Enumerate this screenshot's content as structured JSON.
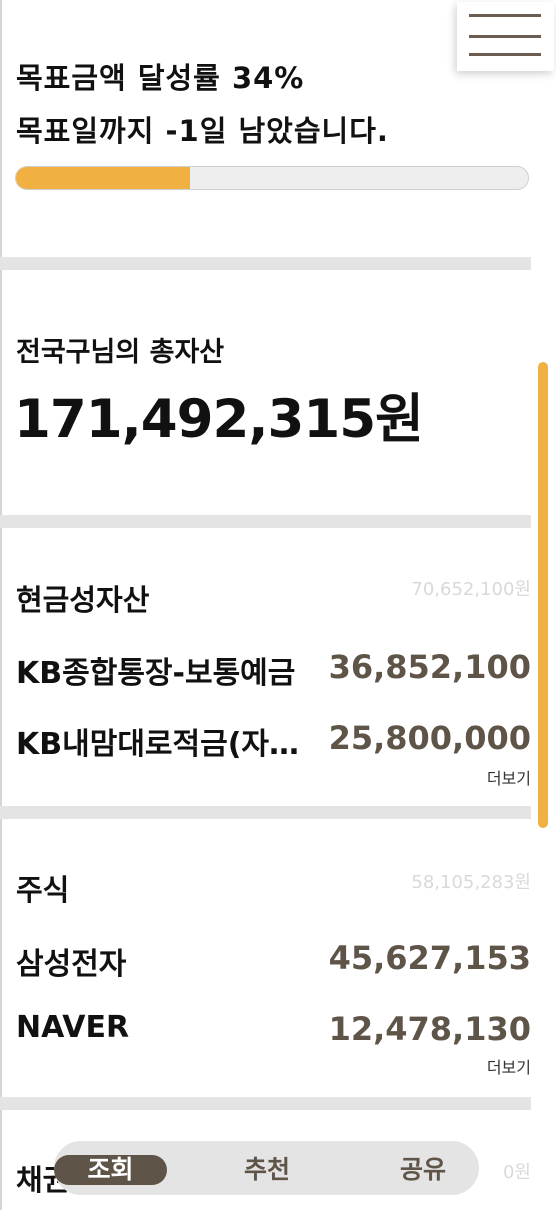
{
  "goal": {
    "line1": "목표금액 달성률 34%",
    "line2": "목표일까지 -1일 남았습니다.",
    "progress_fraction": 0.34
  },
  "total_assets": {
    "label": "전국구님의 총자산",
    "amount": "171,492,315원"
  },
  "sections": {
    "cash": {
      "title": "현금성자산",
      "total": "70,652,100원",
      "items": [
        {
          "name": "KB종합통장-보통예금",
          "value": "36,852,100"
        },
        {
          "name": "KB내맘대로적금(자유적립식)",
          "value": "25,800,000"
        }
      ],
      "more_label": "더보기"
    },
    "stocks": {
      "title": "주식",
      "total": "58,105,283원",
      "items": [
        {
          "name": "삼성전자",
          "value": "45,627,153"
        },
        {
          "name": "NAVER",
          "value": "12,478,130"
        }
      ],
      "more_label": "더보기"
    },
    "bonds": {
      "title": "채권",
      "total": "0원"
    }
  },
  "bottom_nav": {
    "tabs": [
      "조회",
      "추천",
      "공유"
    ],
    "active_index": 0
  },
  "colors": {
    "accent": "#f0b042",
    "brown": "#5e5448",
    "divider": "#e4e4e4"
  }
}
